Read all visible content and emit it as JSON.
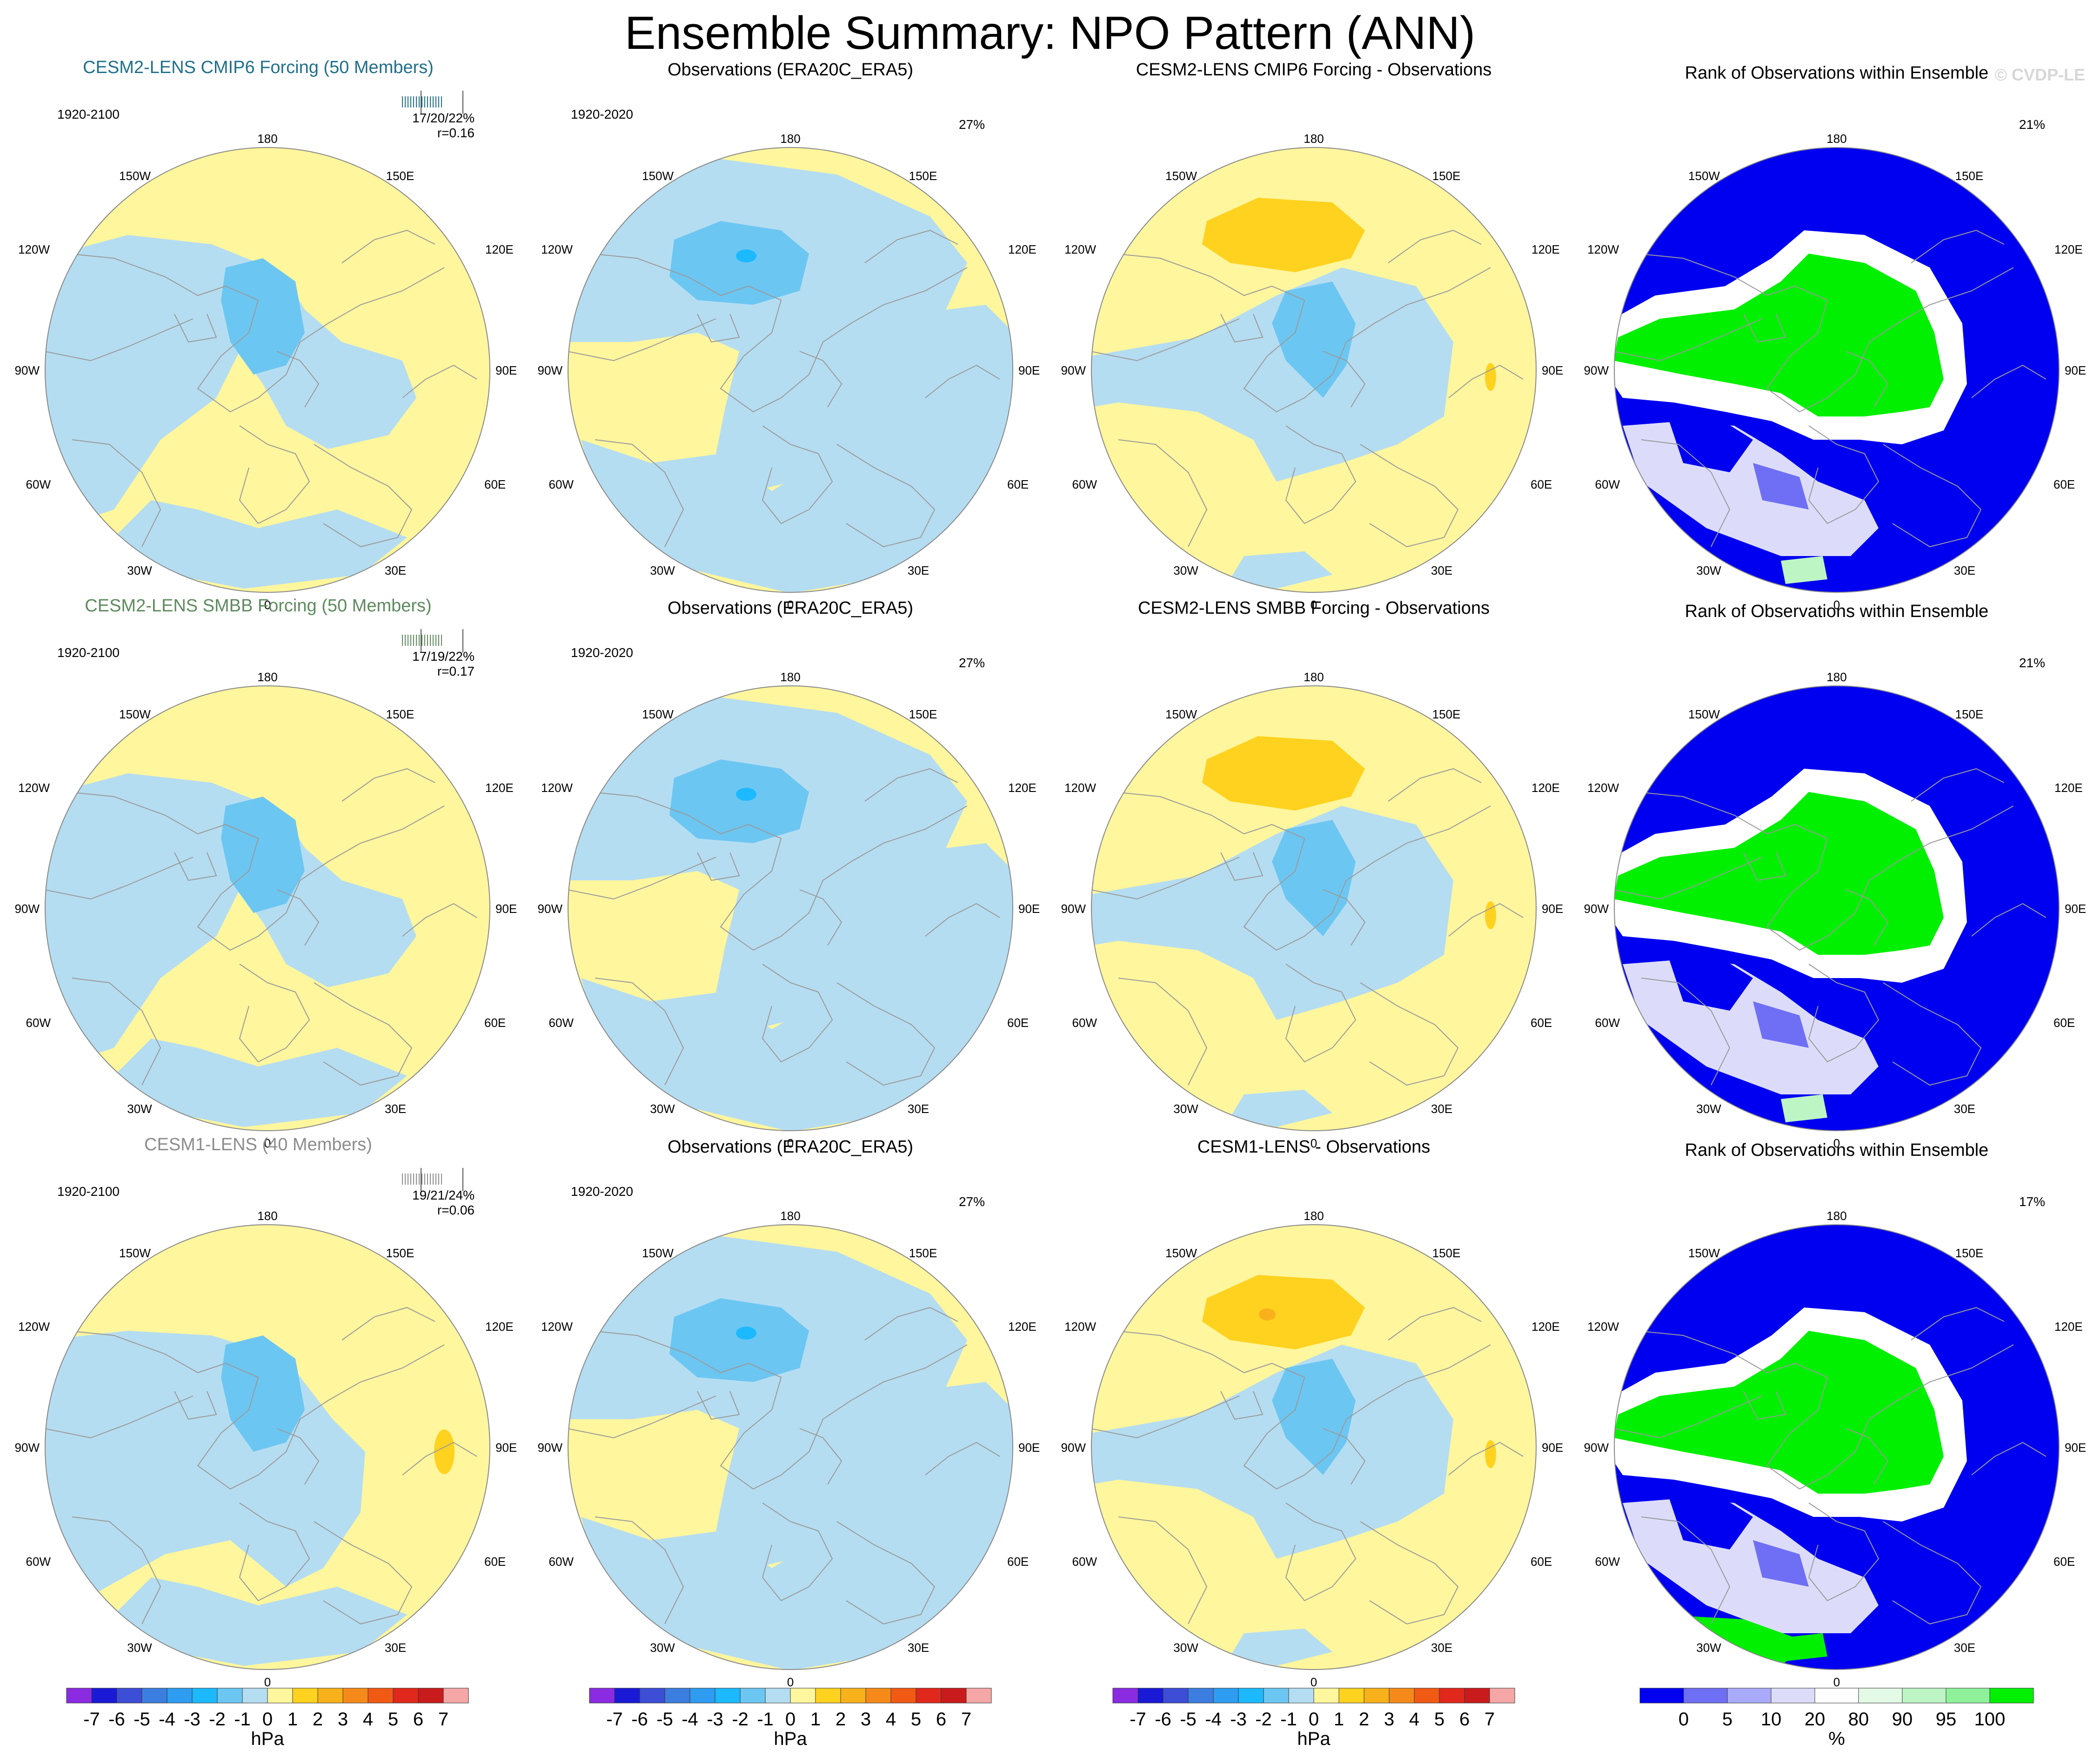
{
  "page": {
    "title": "Ensemble Summary: NPO Pattern (ANN)",
    "watermark": "© CVDP-LE"
  },
  "map_labels": {
    "top": "180",
    "bottom": "0",
    "upper_left": "150W",
    "upper_right": "150E",
    "mid_left": "120W",
    "mid_right": "120E",
    "left": "90W",
    "right": "90E",
    "lower_left": "60W",
    "lower_right": "60E",
    "bottom_left": "30W",
    "bottom_right": "30E"
  },
  "colors": {
    "ensemble_cmip6_title": "#1f6f8b",
    "ensemble_smbb_title": "#5e8a5e",
    "ensemble_cesm1_title": "#8c8c8c",
    "land_outline": "#9a9a9a",
    "slp_bins": [
      "#8a2be2",
      "#1a1ad6",
      "#3c4dd6",
      "#3c7ee0",
      "#2e9cf0",
      "#1cb9ff",
      "#6cc6f2",
      "#b5ddf1",
      "#fff69d",
      "#ffd21f",
      "#f8b11b",
      "#f58a1a",
      "#f05a14",
      "#e0281c",
      "#c91b1b",
      "#f5a6a6"
    ],
    "rank_bins": [
      "#0000f0",
      "#6f6ff5",
      "#aaaafc",
      "#dcdcfa",
      "#ffffff",
      "#e3fbe6",
      "#bdf5c4",
      "#8ff29b",
      "#00f000"
    ]
  },
  "chart_data": {
    "type": "polar-stereographic-maps",
    "variable": "NPO Pattern (ANN)",
    "rows": [
      {
        "ensemble": {
          "title": "CESM2-LENS CMIP6 Forcing (50 Members)",
          "period": "1920-2100",
          "stats": "17/20/22%",
          "corr": "r=0.16",
          "title_color_key": "ensemble_cmip6_title"
        },
        "observations": {
          "title": "Observations (ERA20C_ERA5)",
          "period": "1920-2020",
          "pct": "27%"
        },
        "difference": {
          "title": "CESM2-LENS CMIP6 Forcing - Observations"
        },
        "rank": {
          "title": "Rank of Observations within Ensemble",
          "pct": "21%"
        }
      },
      {
        "ensemble": {
          "title": "CESM2-LENS SMBB Forcing (50 Members)",
          "period": "1920-2100",
          "stats": "17/19/22%",
          "corr": "r=0.17",
          "title_color_key": "ensemble_smbb_title"
        },
        "observations": {
          "title": "Observations (ERA20C_ERA5)",
          "period": "1920-2020",
          "pct": "27%"
        },
        "difference": {
          "title": "CESM2-LENS SMBB Forcing - Observations"
        },
        "rank": {
          "title": "Rank of Observations within Ensemble",
          "pct": "21%"
        }
      },
      {
        "ensemble": {
          "title": "CESM1-LENS (40 Members)",
          "period": "1920-2100",
          "stats": "19/21/24%",
          "corr": "r=0.06",
          "title_color_key": "ensemble_cesm1_title"
        },
        "observations": {
          "title": "Observations (ERA20C_ERA5)",
          "period": "1920-2020",
          "pct": "27%"
        },
        "difference": {
          "title": "CESM1-LENS - Observations"
        },
        "rank": {
          "title": "Rank of Observations within Ensemble",
          "pct": "17%"
        }
      }
    ],
    "colorbars": {
      "slp": {
        "units": "hPa",
        "ticks": [
          "-7",
          "-6",
          "-5",
          "-4",
          "-3",
          "-2",
          "-1",
          "0",
          "1",
          "2",
          "3",
          "4",
          "5",
          "6",
          "7"
        ]
      },
      "rank": {
        "units": "%",
        "ticks": [
          "0",
          "5",
          "10",
          "20",
          "80",
          "90",
          "95",
          "100"
        ]
      }
    }
  }
}
